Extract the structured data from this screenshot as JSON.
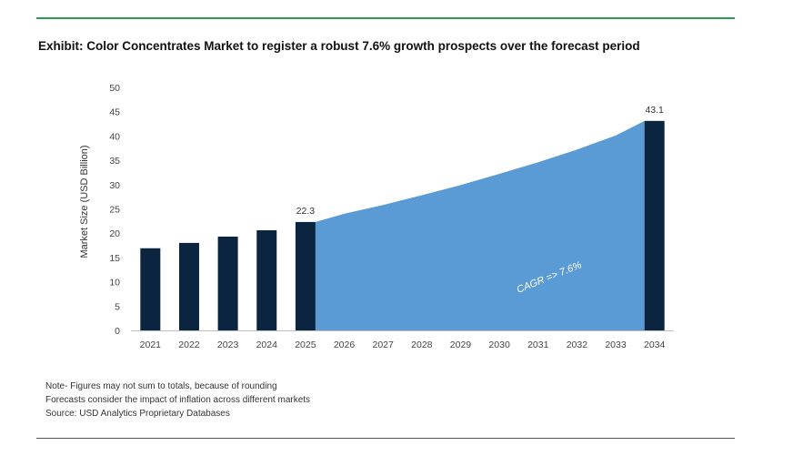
{
  "title": "Exhibit: Color Concentrates Market to register a robust 7.6% growth prospects over the forecast period",
  "notes": [
    "Note- Figures may not sum to totals, because of rounding",
    "Forecasts consider the impact of inflation across different markets",
    "Source: USD Analytics Proprietary Databases"
  ],
  "colors": {
    "bar": "#0b2540",
    "area": "#5b9bd5",
    "rule": "#2e9c4e",
    "annotation_text": "#ffffff"
  },
  "chart_data": {
    "type": "bar",
    "title": "Exhibit: Color Concentrates Market to register a robust 7.6% growth prospects over the forecast period",
    "xlabel": "",
    "ylabel": "Market Size (USD Billion)",
    "ylim": [
      0,
      50
    ],
    "yticks": [
      0,
      5,
      10,
      15,
      20,
      25,
      30,
      35,
      40,
      45,
      50
    ],
    "grid": false,
    "categories": [
      "2021",
      "2022",
      "2023",
      "2024",
      "2025",
      "2026",
      "2027",
      "2028",
      "2029",
      "2030",
      "2031",
      "2032",
      "2033",
      "2034"
    ],
    "series": [
      {
        "type": "bar",
        "values": [
          16.9,
          18.0,
          19.3,
          20.6,
          22.3,
          null,
          null,
          null,
          null,
          null,
          null,
          null,
          null,
          43.1
        ]
      },
      {
        "type": "area",
        "values": [
          null,
          null,
          null,
          null,
          22.3,
          24.0,
          25.8,
          27.8,
          29.9,
          32.2,
          34.6,
          37.2,
          40.1,
          43.1
        ]
      }
    ],
    "data_labels": [
      {
        "category": "2025",
        "text": "22.3"
      },
      {
        "category": "2034",
        "text": "43.1"
      }
    ],
    "annotation": "CAGR => 7.6%"
  }
}
